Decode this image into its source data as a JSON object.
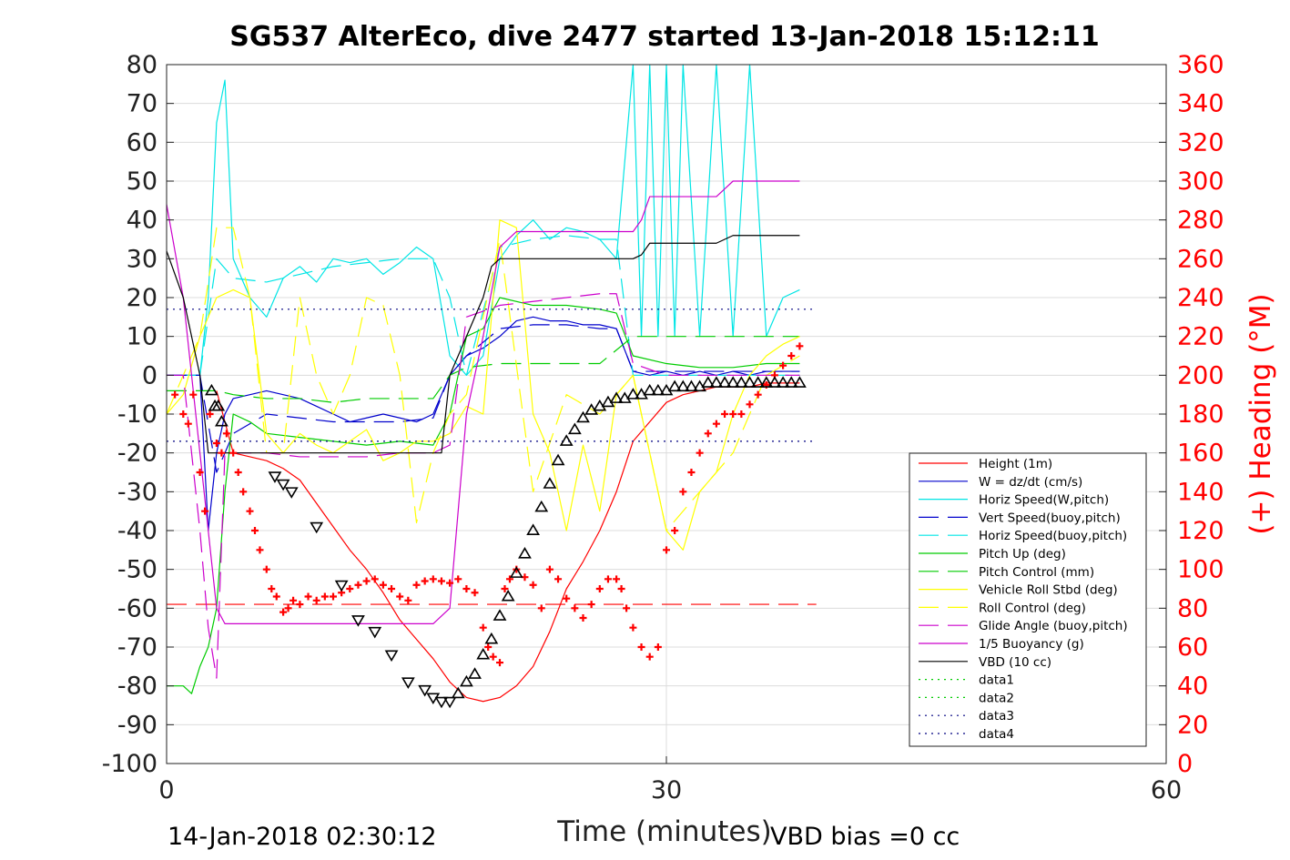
{
  "chart_data": {
    "type": "line",
    "title": "SG537 AlterEco, dive 2477 started 13-Jan-2018 15:12:11",
    "xlabel": "Time (minutes)",
    "ylabel_right": "(+) Heading (°M)",
    "xlim": [
      0,
      60
    ],
    "ylim": [
      -100,
      80
    ],
    "ylim_right": [
      0,
      360
    ],
    "x_ticks": [
      "0",
      "30",
      "60"
    ],
    "y_ticks": [
      "80",
      "70",
      "60",
      "50",
      "40",
      "30",
      "20",
      "10",
      "0",
      "-10",
      "-20",
      "-30",
      "-40",
      "-50",
      "-60",
      "-70",
      "-80",
      "-90",
      "-100"
    ],
    "y_right_ticks": [
      "360",
      "340",
      "320",
      "300",
      "280",
      "260",
      "240",
      "220",
      "200",
      "180",
      "160",
      "140",
      "120",
      "100",
      "80",
      "60",
      "40",
      "20",
      "0"
    ],
    "grid": true,
    "legend_position": "bottom-right",
    "footer_left": "14-Jan-2018 02:30:12",
    "footer_right": "VBD bias =0 cc",
    "colors": {
      "height": "#ff0000",
      "w": "#0000cc",
      "horiz_speed": "#00e5e5",
      "pitch": "#00cc00",
      "roll": "#ffff00",
      "glide": "#cc00cc",
      "vbd": "#000000",
      "data34": "#000080",
      "heading": "#ff0000"
    },
    "series": [
      {
        "name": "Height (1m)",
        "style": "solid",
        "color": "#ff0000",
        "x": [
          3,
          4,
          5,
          6,
          7,
          8,
          9,
          10,
          11,
          12,
          13,
          14,
          15,
          16,
          17,
          18,
          19,
          20,
          21,
          22,
          23,
          24,
          25,
          26,
          27,
          28,
          29,
          30,
          31,
          32,
          33,
          34,
          35,
          36,
          37,
          38
        ],
        "y": [
          -4,
          -20,
          -21,
          -22,
          -24,
          -27,
          -33,
          -39,
          -45,
          -50,
          -56,
          -63,
          -68,
          -73,
          -79,
          -83,
          -84,
          -83,
          -80,
          -75,
          -66,
          -55,
          -48,
          -40,
          -30,
          -17,
          -12,
          -7,
          -5,
          -4,
          -3,
          -3,
          -3,
          -2,
          -2,
          -2
        ]
      },
      {
        "name": "W = dz/dt (cm/s)",
        "style": "solid",
        "color": "#0000cc",
        "x": [
          0,
          1,
          2,
          2.5,
          3,
          3.5,
          4,
          5,
          6,
          7,
          8,
          9,
          10,
          11,
          12,
          13,
          14,
          15,
          16,
          17,
          18,
          19,
          20,
          21,
          22,
          23,
          24,
          25,
          26,
          27,
          28,
          29,
          30,
          31,
          32,
          33,
          34,
          35,
          36,
          37,
          38
        ],
        "y": [
          0,
          0,
          0,
          -40,
          -20,
          -10,
          -6,
          -5,
          -4,
          -5,
          -6,
          -8,
          -10,
          -12,
          -11,
          -10,
          -11,
          -12,
          -10,
          0,
          5,
          7,
          10,
          14,
          15,
          14,
          14,
          13,
          13,
          12,
          1,
          0,
          1,
          0,
          1,
          0,
          1,
          0,
          1,
          1,
          1
        ]
      },
      {
        "name": "Horiz Speed(W,pitch)",
        "style": "solid",
        "color": "#00e5e5",
        "x": [
          0,
          1,
          2,
          2.5,
          3,
          3.5,
          4,
          5,
          6,
          7,
          8,
          9,
          10,
          11,
          12,
          13,
          14,
          15,
          16,
          17,
          18,
          19,
          20,
          21,
          22,
          23,
          24,
          25,
          26,
          27,
          28,
          28.5,
          29,
          29.5,
          30,
          30.5,
          31,
          32,
          33,
          34,
          35,
          36,
          37,
          38
        ],
        "y": [
          0,
          0,
          0,
          20,
          65,
          76,
          30,
          20,
          15,
          25,
          28,
          24,
          30,
          29,
          30,
          26,
          29,
          33,
          30,
          5,
          0,
          5,
          30,
          36,
          40,
          35,
          38,
          37,
          35,
          30,
          80,
          10,
          80,
          10,
          80,
          10,
          80,
          10,
          80,
          10,
          80,
          10,
          20,
          22
        ]
      },
      {
        "name": "Vert Speed(buoy,pitch)",
        "style": "dash",
        "color": "#0000cc",
        "x": [
          0,
          2,
          3,
          4,
          6,
          8,
          10,
          12,
          14,
          16,
          17,
          18,
          20,
          22,
          24,
          26,
          27,
          28,
          30,
          32,
          34,
          36,
          38
        ],
        "y": [
          0,
          0,
          -25,
          -15,
          -10,
          -11,
          -12,
          -12,
          -12,
          -11,
          0,
          5,
          12,
          13,
          13,
          12,
          12,
          1,
          1,
          1,
          1,
          1,
          1
        ]
      },
      {
        "name": "Horiz Speed(buoy,pitch)",
        "style": "dash",
        "color": "#00e5e5",
        "x": [
          2,
          3,
          4,
          6,
          8,
          10,
          12,
          14,
          16,
          17,
          18,
          20,
          22,
          24,
          26,
          27,
          28,
          30,
          32,
          34,
          36,
          38
        ],
        "y": [
          0,
          30,
          25,
          24,
          26,
          28,
          29,
          30,
          30,
          20,
          0,
          33,
          35,
          36,
          35,
          35,
          0,
          0,
          0,
          0,
          0,
          0
        ]
      },
      {
        "name": "Pitch Up (deg)",
        "style": "solid",
        "color": "#00cc00",
        "x": [
          0,
          1,
          1.5,
          2,
          2.5,
          3,
          3.5,
          4,
          5,
          6,
          8,
          10,
          12,
          14,
          16,
          17,
          18,
          19,
          20,
          22,
          24,
          26,
          27,
          28,
          30,
          32,
          34,
          36,
          38
        ],
        "y": [
          -80,
          -80,
          -82,
          -75,
          -70,
          -60,
          -30,
          -10,
          -12,
          -15,
          -16,
          -17,
          -18,
          -17,
          -18,
          -10,
          10,
          12,
          20,
          18,
          18,
          17,
          16,
          5,
          3,
          2,
          2,
          3,
          3
        ]
      },
      {
        "name": "Pitch Control (mm)",
        "style": "dash",
        "color": "#00cc00",
        "x": [
          0,
          2,
          3,
          4,
          6,
          8,
          10,
          12,
          14,
          16,
          17,
          18,
          20,
          22,
          24,
          26,
          28,
          30,
          32,
          34,
          36,
          38
        ],
        "y": [
          -4,
          -4,
          -4,
          -5,
          -6,
          -6,
          -7,
          -6,
          -6,
          -6,
          0,
          2,
          3,
          3,
          3,
          3,
          10,
          10,
          10,
          10,
          10,
          10
        ]
      },
      {
        "name": "Vehicle Roll Stbd (deg)",
        "style": "solid",
        "color": "#ffff00",
        "x": [
          0,
          1,
          2,
          3,
          4,
          5,
          6,
          7,
          8,
          9,
          10,
          11,
          12,
          13,
          14,
          15,
          16,
          17,
          18,
          19,
          20,
          21,
          22,
          23,
          24,
          25,
          26,
          27,
          28,
          29,
          30,
          31,
          32,
          33,
          34,
          35,
          36,
          37,
          38
        ],
        "y": [
          -10,
          -5,
          10,
          20,
          22,
          20,
          -15,
          -20,
          -15,
          -18,
          -20,
          -17,
          -14,
          -22,
          -20,
          -17,
          -17,
          -15,
          -8,
          -10,
          40,
          38,
          -10,
          -20,
          -40,
          -18,
          -35,
          -5,
          0,
          -20,
          -40,
          -45,
          -30,
          -25,
          -10,
          0,
          5,
          8,
          10
        ]
      },
      {
        "name": "Roll Control (deg)",
        "style": "dash",
        "color": "#ffff00",
        "x": [
          0,
          2,
          3,
          4,
          5,
          6,
          7,
          8,
          9,
          10,
          11,
          12,
          13,
          14,
          15,
          16,
          17,
          18,
          20,
          22,
          24,
          26,
          28,
          30,
          32,
          34,
          36,
          38
        ],
        "y": [
          -10,
          10,
          38,
          38,
          20,
          -20,
          -20,
          20,
          0,
          -10,
          0,
          20,
          18,
          0,
          -38,
          -20,
          -10,
          -5,
          35,
          -30,
          -5,
          -10,
          0,
          -40,
          -30,
          -20,
          0,
          5
        ]
      },
      {
        "name": "Glide Angle (buoy,pitch)",
        "style": "dash",
        "color": "#cc00cc",
        "x": [
          0,
          1,
          2,
          2.5,
          3,
          3.5,
          4,
          6,
          8,
          10,
          12,
          14,
          16,
          17,
          18,
          20,
          22,
          24,
          26,
          27,
          28,
          30,
          32,
          34,
          36,
          38
        ],
        "y": [
          0,
          0,
          -40,
          -65,
          -78,
          -20,
          -20,
          -20,
          -21,
          -21,
          -21,
          -20,
          -20,
          -18,
          15,
          18,
          19,
          20,
          21,
          21,
          3,
          0,
          0,
          0,
          0,
          0
        ]
      },
      {
        "name": "1/5 Buoyancy (g)",
        "style": "solid",
        "color": "#cc00cc",
        "x": [
          0,
          1,
          2,
          3,
          3.5,
          4,
          6,
          8,
          10,
          12,
          14,
          15,
          16,
          17,
          18,
          19,
          20,
          21,
          22,
          24,
          26,
          27,
          28,
          28.5,
          29,
          32,
          33,
          33.5,
          34,
          36,
          38
        ],
        "y": [
          44,
          20,
          -20,
          -60,
          -64,
          -64,
          -64,
          -64,
          -64,
          -64,
          -64,
          -64,
          -64,
          -60,
          -10,
          10,
          33,
          37,
          37,
          37,
          37,
          37,
          37,
          40,
          46,
          46,
          46,
          48,
          50,
          50,
          50
        ]
      },
      {
        "name": "VBD (10 cc)",
        "style": "solid",
        "color": "#000000",
        "x": [
          0,
          1,
          2,
          2.5,
          3,
          4,
          6,
          8,
          10,
          12,
          14,
          16,
          16.5,
          17,
          18,
          19,
          19.5,
          20,
          22,
          24,
          26,
          28,
          28.5,
          29,
          32,
          33,
          33.5,
          34,
          36,
          38
        ],
        "y": [
          32,
          20,
          0,
          -20,
          -20,
          -20,
          -20,
          -20,
          -20,
          -20,
          -20,
          -20,
          -20,
          0,
          10,
          20,
          28,
          30,
          30,
          30,
          30,
          30,
          31,
          34,
          34,
          34,
          35,
          36,
          36,
          36
        ]
      },
      {
        "name": "data1",
        "style": "dot",
        "color": "#00cc00",
        "x": [],
        "y": []
      },
      {
        "name": "data2",
        "style": "dot",
        "color": "#00cc00",
        "x": [],
        "y": []
      },
      {
        "name": "data3",
        "style": "dot",
        "color": "#000080",
        "x": [
          0,
          39
        ],
        "y": [
          17,
          17
        ]
      },
      {
        "name": "data4",
        "style": "dot",
        "color": "#000080",
        "x": [
          0,
          39
        ],
        "y": [
          -17,
          -17
        ]
      }
    ],
    "reference_line": {
      "style": "dash",
      "color": "#ff0000",
      "x": [
        0,
        39
      ],
      "y": [
        -59,
        -59
      ]
    },
    "heading_points": {
      "color": "#ff0000",
      "x": [
        0.5,
        1,
        1.3,
        1.6,
        2,
        2.3,
        2.6,
        3,
        3.3,
        3.6,
        4,
        4.3,
        4.6,
        5,
        5.3,
        5.6,
        6,
        6.3,
        6.6,
        7,
        7.3,
        7.6,
        8,
        8.5,
        9,
        9.5,
        10,
        10.5,
        11,
        11.5,
        12,
        12.5,
        13,
        13.5,
        14,
        14.5,
        15,
        15.5,
        16,
        16.5,
        17,
        17.5,
        18,
        18.5,
        19,
        19.3,
        19.6,
        20,
        20.3,
        20.6,
        21,
        21.5,
        22,
        22.5,
        23,
        23.5,
        24,
        24.5,
        25,
        25.5,
        26,
        26.5,
        27,
        27.3,
        27.6,
        28,
        28.5,
        29,
        29.5,
        30,
        30.5,
        31,
        31.5,
        32,
        32.5,
        33,
        33.5,
        34,
        34.5,
        35,
        35.5,
        36,
        36.5,
        37,
        37.5,
        38
      ],
      "y": [
        190,
        180,
        175,
        190,
        150,
        130,
        180,
        165,
        160,
        170,
        160,
        150,
        140,
        130,
        120,
        110,
        100,
        90,
        86,
        78,
        80,
        84,
        82,
        86,
        84,
        86,
        86,
        88,
        90,
        92,
        94,
        95,
        92,
        90,
        86,
        84,
        92,
        94,
        95,
        94,
        93,
        95,
        90,
        88,
        70,
        60,
        55,
        52,
        90,
        95,
        100,
        96,
        92,
        80,
        100,
        95,
        85,
        80,
        75,
        82,
        90,
        95,
        95,
        90,
        80,
        70,
        60,
        55,
        60,
        110,
        120,
        140,
        150,
        160,
        170,
        175,
        180,
        180,
        180,
        185,
        190,
        195,
        200,
        205,
        210,
        215
      ]
    },
    "vbd_markers": {
      "color": "#000000",
      "x": [
        2.7,
        2.9,
        3.1,
        3.3,
        6.5,
        7,
        7.5,
        9,
        10.5,
        11.5,
        12.5,
        13.5,
        14.5,
        15.5,
        16,
        16.5,
        17,
        17.5,
        18,
        18.5,
        19,
        19.5,
        20,
        20.5,
        21,
        21.5,
        22,
        22.5,
        23,
        23.5,
        24,
        24.5,
        25,
        25.5,
        26,
        26.5,
        27,
        27.5,
        28,
        28.5,
        29,
        29.5,
        30,
        30.5,
        31,
        31.5,
        32,
        32.5,
        33,
        33.5,
        34,
        34.5,
        35,
        35.5,
        36,
        36.5,
        37,
        37.5,
        38
      ],
      "y": [
        -4,
        -8,
        -8,
        -12,
        -26,
        -28,
        -30,
        -39,
        -54,
        -63,
        -66,
        -72,
        -79,
        -81,
        -83,
        -84,
        -84,
        -82,
        -79,
        -77,
        -72,
        -68,
        -62,
        -57,
        -51,
        -46,
        -40,
        -34,
        -28,
        -22,
        -17,
        -14,
        -11,
        -9,
        -8,
        -7,
        -6,
        -6,
        -5,
        -5,
        -4,
        -4,
        -4,
        -3,
        -3,
        -3,
        -3,
        -2,
        -2,
        -2,
        -2,
        -2,
        -2,
        -2,
        -2,
        -2,
        -2,
        -2,
        -2
      ]
    }
  }
}
